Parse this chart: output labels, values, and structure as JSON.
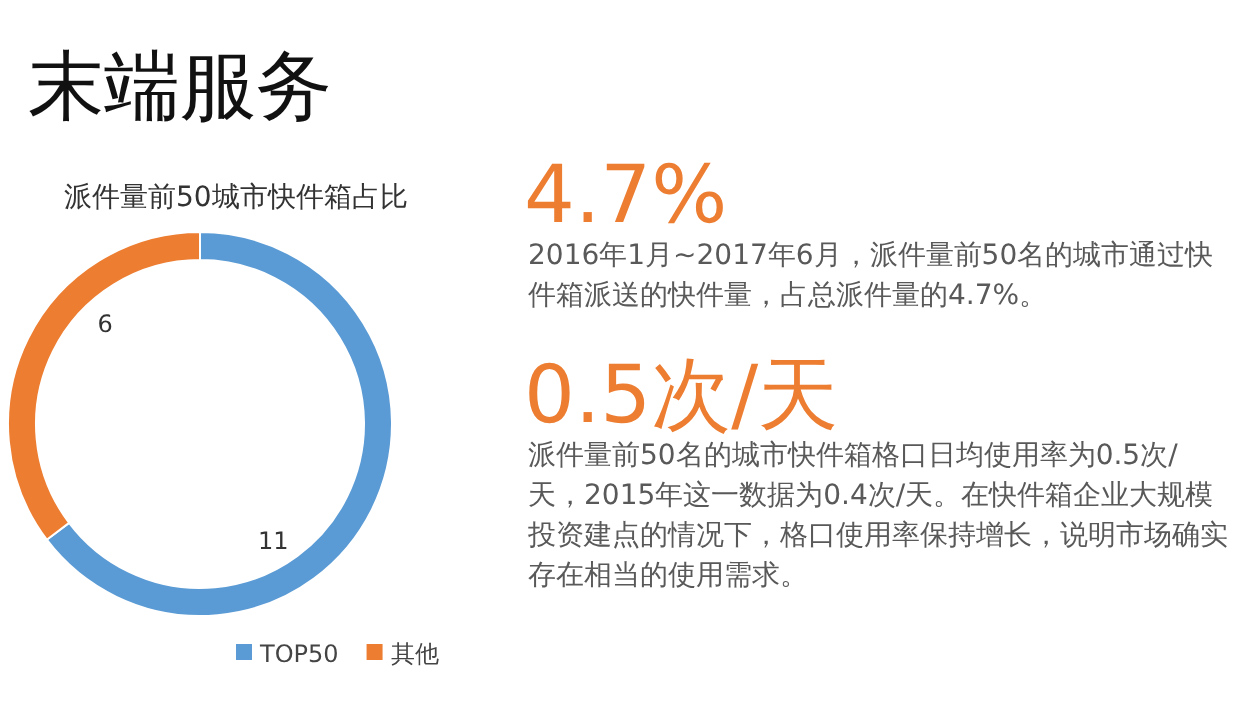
{
  "chart_data": {
    "type": "donut",
    "title": "末端服务",
    "subtitle": "派件量前50城市快件箱占比",
    "categories": [
      "TOP50",
      "其他"
    ],
    "values": [
      11,
      6
    ],
    "colors": [
      "#5b9bd5",
      "#ed7d31"
    ],
    "data_labels": true,
    "legend": "bottom",
    "annotations": [
      "4.7%",
      "2016年1月~2017年6月，派件量前50名的城市通过快件箱派送的快件量，占总派件量的4.7%。",
      "0.5次/天",
      "派件量前50名的城市快件箱格口日均使用率为0.5次/天，2015年这一数据为0.4次/天。在快件箱企业大规模投资建点的情况下，格口使用率保持增长，说明市场确实存在相当的使用需求。"
    ]
  }
}
